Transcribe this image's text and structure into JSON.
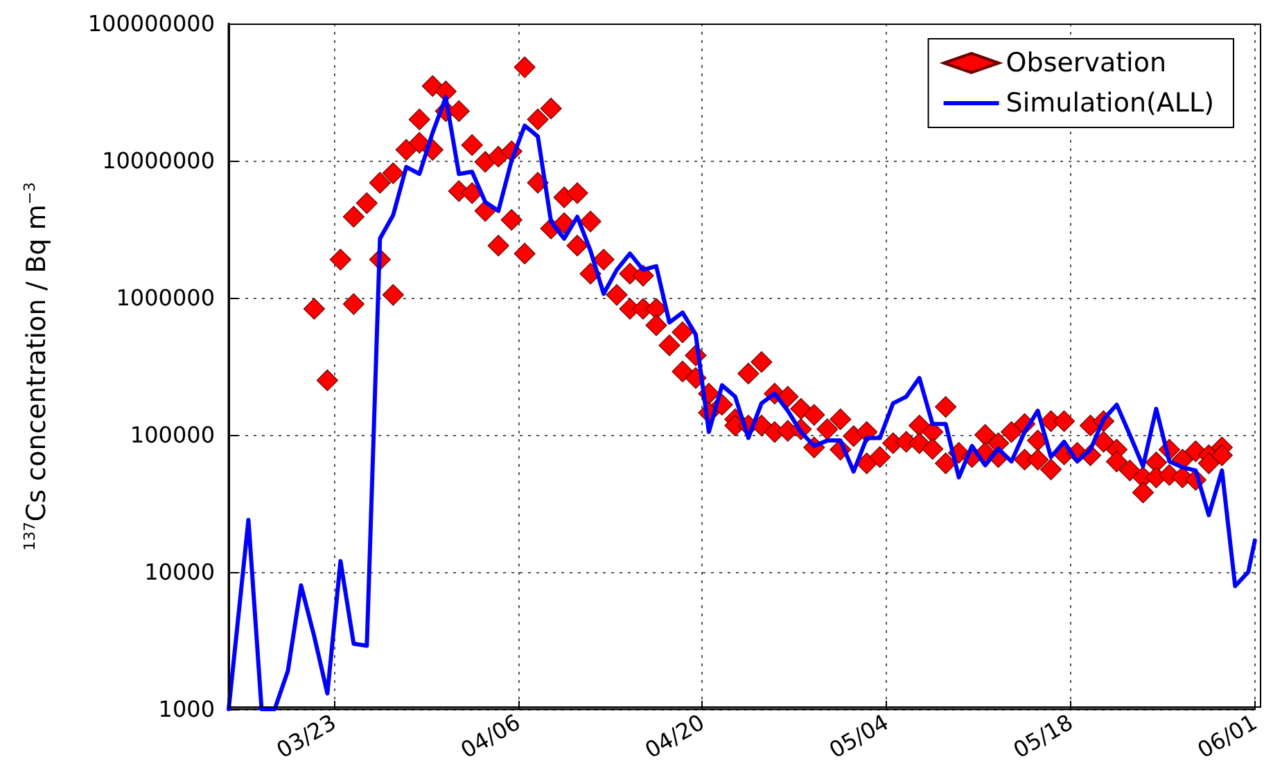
{
  "chart_data": {
    "type": "line",
    "ylabel": "$^{137}$Cs concentration / Bq m$^{−3}$",
    "log": "y",
    "grid": true,
    "legend": "top right",
    "xlim": [
      "--03-15",
      "--06-01"
    ],
    "xticks": [
      {
        "value": "--03-23",
        "label": "03/23"
      },
      {
        "value": "--04-06",
        "label": "04/06"
      },
      {
        "value": "--04-20",
        "label": "04/20"
      },
      {
        "value": "--05-04",
        "label": "05/04"
      },
      {
        "value": "--05-18",
        "label": "05/18"
      },
      {
        "value": "--06-01",
        "label": "06/01"
      }
    ],
    "ylim": [
      1000,
      100000000
    ],
    "yticks": [
      1000,
      10000,
      100000,
      1000000,
      10000000,
      100000000
    ],
    "series": [
      {
        "name": "Observation",
        "type": "scatter",
        "marker": "diamond",
        "color": "#ff0000",
        "x": [
          "--03-21T12:00",
          "--03-22T12:00",
          "--03-23T12:00",
          "--03-24T12:00",
          "--03-24T12:00",
          "--03-25T12:00",
          "--03-26T12:00",
          "--03-26T12:00",
          "--03-27T12:00",
          "--03-27T12:00",
          "--03-28T12:00",
          "--03-29T12:00",
          "--03-29T12:00",
          "--03-30T12:00",
          "--03-30T12:00",
          "--03-31T12:00",
          "--03-31T12:00",
          "--04-01T12:00",
          "--04-01T12:00",
          "--04-02T12:00",
          "--04-02T12:00",
          "--04-03T12:00",
          "--04-03T12:00",
          "--04-04T12:00",
          "--04-04T12:00",
          "--04-05T12:00",
          "--04-05T12:00",
          "--04-06T12:00",
          "--04-06T12:00",
          "--04-07T12:00",
          "--04-07T12:00",
          "--04-08T12:00",
          "--04-08T12:00",
          "--04-09T12:00",
          "--04-09T12:00",
          "--04-10T12:00",
          "--04-10T12:00",
          "--04-11T12:00",
          "--04-11T12:00",
          "--04-12T12:00",
          "--04-13T12:00",
          "--04-14T12:00",
          "--04-14T12:00",
          "--04-15T12:00",
          "--04-15T12:00",
          "--04-16T12:00",
          "--04-16T12:00",
          "--04-17T12:00",
          "--04-18T12:00",
          "--04-18T12:00",
          "--04-19T12:00",
          "--04-19T12:00",
          "--04-20T12:00",
          "--04-20T12:00",
          "--04-21T12:00",
          "--04-22T12:00",
          "--04-22T12:00",
          "--04-23T12:00",
          "--04-23T12:00",
          "--04-24T12:00",
          "--04-24T12:00",
          "--04-25T12:00",
          "--04-25T12:00",
          "--04-26T12:00",
          "--04-26T12:00",
          "--04-27T12:00",
          "--04-27T12:00",
          "--04-28T12:00",
          "--04-28T12:00",
          "--04-29T12:00",
          "--04-30T12:00",
          "--04-30T12:00",
          "--05-01T12:00",
          "--05-02T12:00",
          "--05-02T12:00",
          "--05-03T12:00",
          "--05-04T12:00",
          "--05-05T12:00",
          "--05-06T12:00",
          "--05-06T12:00",
          "--05-07T12:00",
          "--05-07T12:00",
          "--05-08T12:00",
          "--05-08T12:00",
          "--05-09T12:00",
          "--05-10T12:00",
          "--05-11T12:00",
          "--05-11T12:00",
          "--05-12T12:00",
          "--05-12T12:00",
          "--05-13T12:00",
          "--05-14T12:00",
          "--05-14T12:00",
          "--05-15T12:00",
          "--05-15T12:00",
          "--05-16T12:00",
          "--05-16T12:00",
          "--05-17T12:00",
          "--05-17T12:00",
          "--05-18T12:00",
          "--05-19T12:00",
          "--05-19T12:00",
          "--05-20T12:00",
          "--05-20T12:00",
          "--05-21T12:00",
          "--05-21T12:00",
          "--05-22T12:00",
          "--05-23T12:00",
          "--05-23T12:00",
          "--05-24T12:00",
          "--05-24T12:00",
          "--05-25T12:00",
          "--05-25T12:00",
          "--05-26T12:00",
          "--05-26T12:00",
          "--05-27T12:00",
          "--05-27T12:00",
          "--05-28T12:00",
          "--05-28T12:00",
          "--05-29T12:00",
          "--05-29T12:00"
        ],
        "values": [
          830000,
          250000,
          1900000,
          900000,
          3900000,
          4900000,
          1900000,
          6900000,
          1050000,
          8100000,
          12000000,
          20000000,
          13500000,
          12000000,
          35000000,
          23000000,
          32000000,
          23000000,
          6000000,
          13000000,
          5800000,
          9800000,
          4300000,
          10700000,
          2400000,
          11700000,
          3700000,
          48000000,
          2100000,
          20000000,
          6900000,
          24000000,
          3200000,
          5400000,
          3500000,
          5800000,
          2400000,
          3600000,
          1500000,
          1900000,
          1050000,
          1500000,
          830000,
          1450000,
          830000,
          830000,
          630000,
          450000,
          560000,
          290000,
          380000,
          260000,
          200000,
          145000,
          166000,
          130000,
          117000,
          280000,
          117000,
          340000,
          117000,
          200000,
          105000,
          190000,
          107000,
          155000,
          110000,
          140000,
          81000,
          110000,
          130000,
          78000,
          98000,
          105000,
          62000,
          69000,
          87000,
          89000,
          117000,
          87000,
          105000,
          79000,
          160000,
          62000,
          74000,
          69000,
          100000,
          74000,
          87000,
          69000,
          105000,
          120000,
          66000,
          91000,
          66000,
          126000,
          56000,
          126000,
          72000,
          74000,
          117000,
          71000,
          126000,
          89000,
          78000,
          64000,
          55000,
          49000,
          38000,
          63000,
          49000,
          78000,
          51000,
          66000,
          49000,
          76000,
          47000,
          71000,
          62000,
          81000,
          71000
        ]
      },
      {
        "name": "Simulation(ALL)",
        "marker": "none",
        "color": "#0000ff",
        "x": [
          "--03-15",
          "--03-16T12:00",
          "--03-17T12:00",
          "--03-18T12:00",
          "--03-19T12:00",
          "--03-20T12:00",
          "--03-21T12:00",
          "--03-22T12:00",
          "--03-23T12:00",
          "--03-24T12:00",
          "--03-25T12:00",
          "--03-26T12:00",
          "--03-27T12:00",
          "--03-28T12:00",
          "--03-29T12:00",
          "--03-30T12:00",
          "--03-31T12:00",
          "--04-01T12:00",
          "--04-02T12:00",
          "--04-03T12:00",
          "--04-04T12:00",
          "--04-05T12:00",
          "--04-06T12:00",
          "--04-07T12:00",
          "--04-08T12:00",
          "--04-09T12:00",
          "--04-10T12:00",
          "--04-11T12:00",
          "--04-12T12:00",
          "--04-13T12:00",
          "--04-14T12:00",
          "--04-15T12:00",
          "--04-16T12:00",
          "--04-17T12:00",
          "--04-18T12:00",
          "--04-19T12:00",
          "--04-20T12:00",
          "--04-21T12:00",
          "--04-22T12:00",
          "--04-23T12:00",
          "--04-24T12:00",
          "--04-25T12:00",
          "--04-26T12:00",
          "--04-27T12:00",
          "--04-28T12:00",
          "--04-29T12:00",
          "--04-30T12:00",
          "--05-01T12:00",
          "--05-02T12:00",
          "--05-03T12:00",
          "--05-04T12:00",
          "--05-05T12:00",
          "--05-06T12:00",
          "--05-07T12:00",
          "--05-08T12:00",
          "--05-09T12:00",
          "--05-10T12:00",
          "--05-11T12:00",
          "--05-12T12:00",
          "--05-13T12:00",
          "--05-14T12:00",
          "--05-15T12:00",
          "--05-16T12:00",
          "--05-17T12:00",
          "--05-18T12:00",
          "--05-19T12:00",
          "--05-20T12:00",
          "--05-21T12:00",
          "--05-22T12:00",
          "--05-23T12:00",
          "--05-24T12:00",
          "--05-25T12:00",
          "--05-26T12:00",
          "--05-27T12:00",
          "--05-28T12:00",
          "--05-29T12:00",
          "--05-30T12:00",
          "--05-31T12:00",
          "--06-01"
        ],
        "values": [
          1000,
          24000,
          1000,
          1000,
          1900,
          8000,
          3400,
          1300,
          12000,
          3000,
          2900,
          2700000,
          4000000,
          9000000,
          8000000,
          16000000,
          29000000,
          8000000,
          8300000,
          5000000,
          4300000,
          10000000,
          18000000,
          15000000,
          3600000,
          2700000,
          3900000,
          2200000,
          1070000,
          1600000,
          2100000,
          1600000,
          1700000,
          660000,
          780000,
          540000,
          105000,
          230000,
          190000,
          95000,
          170000,
          200000,
          150000,
          105000,
          83000,
          91000,
          91000,
          54000,
          95000,
          95000,
          170000,
          190000,
          260000,
          120000,
          120000,
          49000,
          83000,
          60000,
          79000,
          64000,
          105000,
          150000,
          69000,
          89000,
          64000,
          78000,
          130000,
          166000,
          100000,
          59000,
          155000,
          64000,
          58000,
          55000,
          26000,
          55000,
          7900,
          10000,
          17000
        ]
      }
    ]
  }
}
